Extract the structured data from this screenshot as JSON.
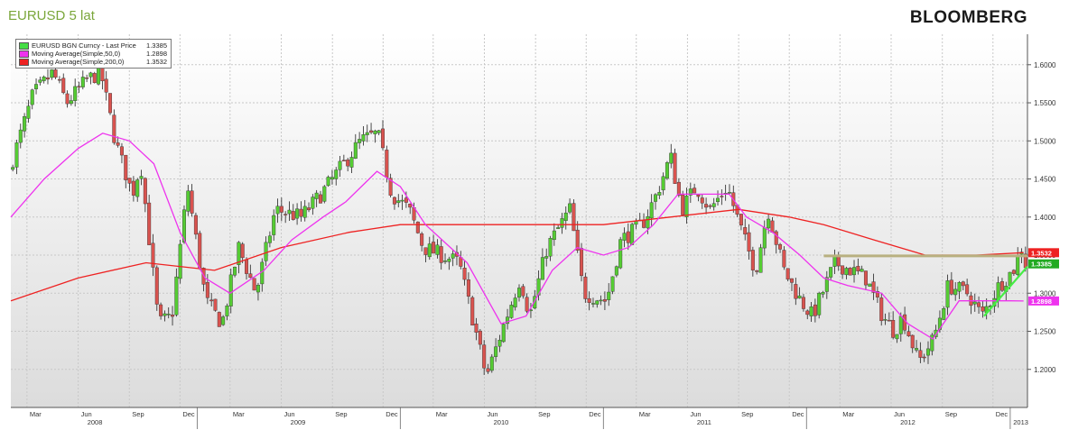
{
  "header": {
    "title": "EURUSD 5 lat",
    "brand": "BLOOMBERG"
  },
  "legend": {
    "items": [
      {
        "label": "EURUSD BGN Curncy - Last Price",
        "value": "1.3385",
        "color": "#44dd44"
      },
      {
        "label": "Moving Average(Simple,50,0)",
        "value": "1.2898",
        "color": "#ee33ee"
      },
      {
        "label": "Moving Average(Simple,200,0)",
        "value": "1.3532",
        "color": "#ee2222"
      }
    ]
  },
  "colors": {
    "up_candle": "#55cc33",
    "down_candle": "#d9534f",
    "ma50": "#ee33ee",
    "ma200": "#ee2222",
    "trend_up": "#44ee44",
    "resistance": "#b8b080",
    "grid": "#c8c8c8"
  },
  "chart_data": {
    "type": "candlestick",
    "title": "EURUSD 5 lat",
    "xlabel": "",
    "ylabel": "",
    "grid": true,
    "legend_position": "top-left",
    "y_axis_side": "right",
    "ylim": [
      1.15,
      1.64
    ],
    "y_ticks": [
      "1.6000",
      "1.5500",
      "1.5000",
      "1.4500",
      "1.4000",
      "1.3500",
      "1.3000",
      "1.2500",
      "1.2000"
    ],
    "x_month_labels": [
      {
        "label": "Mar",
        "date": "2008-03"
      },
      {
        "label": "Jun",
        "date": "2008-06"
      },
      {
        "label": "Sep",
        "date": "2008-09"
      },
      {
        "label": "Dec",
        "date": "2008-12"
      },
      {
        "label": "Mar",
        "date": "2009-03"
      },
      {
        "label": "Jun",
        "date": "2009-06"
      },
      {
        "label": "Sep",
        "date": "2009-09"
      },
      {
        "label": "Dec",
        "date": "2009-12"
      },
      {
        "label": "Mar",
        "date": "2010-03"
      },
      {
        "label": "Jun",
        "date": "2010-06"
      },
      {
        "label": "Sep",
        "date": "2010-09"
      },
      {
        "label": "Dec",
        "date": "2010-12"
      },
      {
        "label": "Mar",
        "date": "2011-03"
      },
      {
        "label": "Jun",
        "date": "2011-06"
      },
      {
        "label": "Sep",
        "date": "2011-09"
      },
      {
        "label": "Dec",
        "date": "2011-12"
      },
      {
        "label": "Mar",
        "date": "2012-03"
      },
      {
        "label": "Jun",
        "date": "2012-06"
      },
      {
        "label": "Sep",
        "date": "2012-09"
      },
      {
        "label": "Dec",
        "date": "2012-12"
      }
    ],
    "x_year_labels": [
      {
        "label": "2008",
        "date": "2008-07"
      },
      {
        "label": "2009",
        "date": "2009-07"
      },
      {
        "label": "2010",
        "date": "2010-07"
      },
      {
        "label": "2011",
        "date": "2011-07"
      },
      {
        "label": "2012",
        "date": "2012-07"
      },
      {
        "label": "2013",
        "date": "2013-01-20"
      }
    ],
    "x_range": [
      "2008-02-01",
      "2013-02-01"
    ],
    "price_keypoints": [
      [
        "2008-02-01",
        1.46
      ],
      [
        "2008-03-15",
        1.56
      ],
      [
        "2008-04-20",
        1.59
      ],
      [
        "2008-05-15",
        1.55
      ],
      [
        "2008-06-20",
        1.58
      ],
      [
        "2008-07-15",
        1.59
      ],
      [
        "2008-08-10",
        1.5
      ],
      [
        "2008-09-10",
        1.43
      ],
      [
        "2008-09-25",
        1.47
      ],
      [
        "2008-10-27",
        1.26
      ],
      [
        "2008-11-20",
        1.27
      ],
      [
        "2008-12-18",
        1.44
      ],
      [
        "2009-01-20",
        1.29
      ],
      [
        "2009-02-18",
        1.26
      ],
      [
        "2009-03-20",
        1.36
      ],
      [
        "2009-04-20",
        1.3
      ],
      [
        "2009-05-25",
        1.41
      ],
      [
        "2009-07-10",
        1.4
      ],
      [
        "2009-08-15",
        1.43
      ],
      [
        "2009-09-25",
        1.47
      ],
      [
        "2009-10-25",
        1.5
      ],
      [
        "2009-11-25",
        1.51
      ],
      [
        "2009-12-20",
        1.43
      ],
      [
        "2010-01-20",
        1.41
      ],
      [
        "2010-02-15",
        1.36
      ],
      [
        "2010-03-20",
        1.35
      ],
      [
        "2010-04-20",
        1.34
      ],
      [
        "2010-05-20",
        1.25
      ],
      [
        "2010-06-08",
        1.19
      ],
      [
        "2010-07-10",
        1.26
      ],
      [
        "2010-08-08",
        1.32
      ],
      [
        "2010-08-25",
        1.27
      ],
      [
        "2010-09-25",
        1.36
      ],
      [
        "2010-11-05",
        1.41
      ],
      [
        "2010-11-30",
        1.3
      ],
      [
        "2011-01-10",
        1.29
      ],
      [
        "2011-02-05",
        1.37
      ],
      [
        "2011-03-15",
        1.39
      ],
      [
        "2011-04-10",
        1.43
      ],
      [
        "2011-05-05",
        1.48
      ],
      [
        "2011-05-25",
        1.41
      ],
      [
        "2011-06-20",
        1.44
      ],
      [
        "2011-07-15",
        1.41
      ],
      [
        "2011-08-15",
        1.44
      ],
      [
        "2011-09-15",
        1.37
      ],
      [
        "2011-10-05",
        1.33
      ],
      [
        "2011-10-27",
        1.41
      ],
      [
        "2011-11-25",
        1.33
      ],
      [
        "2011-12-25",
        1.29
      ],
      [
        "2012-01-15",
        1.27
      ],
      [
        "2012-02-25",
        1.34
      ],
      [
        "2012-03-25",
        1.33
      ],
      [
        "2012-04-20",
        1.32
      ],
      [
        "2012-05-20",
        1.27
      ],
      [
        "2012-06-10",
        1.25
      ],
      [
        "2012-06-25",
        1.27
      ],
      [
        "2012-07-24",
        1.21
      ],
      [
        "2012-08-20",
        1.24
      ],
      [
        "2012-09-15",
        1.31
      ],
      [
        "2012-10-20",
        1.3
      ],
      [
        "2012-11-15",
        1.27
      ],
      [
        "2012-12-15",
        1.31
      ],
      [
        "2013-01-10",
        1.33
      ],
      [
        "2013-01-25",
        1.36
      ],
      [
        "2013-02-01",
        1.3385
      ]
    ],
    "series": [
      {
        "name": "EURUSD BGN Curncy - Last Price",
        "last_value": 1.3385
      },
      {
        "name": "Moving Average(Simple,50,0)",
        "last_value": 1.2898,
        "points": [
          [
            "2008-02-01",
            1.4
          ],
          [
            "2008-04-01",
            1.45
          ],
          [
            "2008-06-01",
            1.49
          ],
          [
            "2008-07-15",
            1.51
          ],
          [
            "2008-09-01",
            1.5
          ],
          [
            "2008-10-15",
            1.47
          ],
          [
            "2008-12-01",
            1.38
          ],
          [
            "2009-01-15",
            1.32
          ],
          [
            "2009-03-01",
            1.3
          ],
          [
            "2009-05-01",
            1.33
          ],
          [
            "2009-06-20",
            1.37
          ],
          [
            "2009-08-15",
            1.4
          ],
          [
            "2009-09-25",
            1.42
          ],
          [
            "2009-11-20",
            1.46
          ],
          [
            "2010-01-01",
            1.44
          ],
          [
            "2010-02-15",
            1.39
          ],
          [
            "2010-04-01",
            1.36
          ],
          [
            "2010-05-01",
            1.34
          ],
          [
            "2010-07-01",
            1.26
          ],
          [
            "2010-08-15",
            1.27
          ],
          [
            "2010-10-01",
            1.33
          ],
          [
            "2010-11-15",
            1.36
          ],
          [
            "2011-01-01",
            1.35
          ],
          [
            "2011-02-15",
            1.36
          ],
          [
            "2011-04-01",
            1.39
          ],
          [
            "2011-05-15",
            1.43
          ],
          [
            "2011-07-01",
            1.43
          ],
          [
            "2011-08-15",
            1.43
          ],
          [
            "2011-09-15",
            1.4
          ],
          [
            "2011-11-01",
            1.38
          ],
          [
            "2011-12-20",
            1.35
          ],
          [
            "2012-02-01",
            1.32
          ],
          [
            "2012-03-15",
            1.31
          ],
          [
            "2012-05-15",
            1.3
          ],
          [
            "2012-07-01",
            1.26
          ],
          [
            "2012-08-15",
            1.24
          ],
          [
            "2012-10-01",
            1.29
          ],
          [
            "2012-11-15",
            1.29
          ],
          [
            "2013-01-01",
            1.29
          ],
          [
            "2013-01-25",
            1.2898
          ]
        ]
      },
      {
        "name": "Moving Average(Simple,200,0)",
        "last_value": 1.3532,
        "points": [
          [
            "2008-02-01",
            1.29
          ],
          [
            "2008-06-01",
            1.32
          ],
          [
            "2008-10-01",
            1.34
          ],
          [
            "2009-02-01",
            1.33
          ],
          [
            "2009-06-01",
            1.36
          ],
          [
            "2009-10-01",
            1.38
          ],
          [
            "2010-01-01",
            1.39
          ],
          [
            "2010-04-01",
            1.39
          ],
          [
            "2010-08-01",
            1.39
          ],
          [
            "2011-01-01",
            1.39
          ],
          [
            "2011-05-01",
            1.4
          ],
          [
            "2011-09-01",
            1.41
          ],
          [
            "2011-12-01",
            1.4
          ],
          [
            "2012-02-01",
            1.39
          ],
          [
            "2012-05-01",
            1.37
          ],
          [
            "2012-08-01",
            1.35
          ],
          [
            "2012-11-01",
            1.35
          ],
          [
            "2013-01-25",
            1.3532
          ]
        ]
      }
    ],
    "annotations": [
      {
        "type": "resistance_line",
        "from": [
          "2012-02-01",
          1.349
        ],
        "to": [
          "2013-02-01",
          1.349
        ]
      },
      {
        "type": "trend_line",
        "from": [
          "2012-11-15",
          1.27
        ],
        "to": [
          "2013-02-01",
          1.335
        ]
      }
    ],
    "price_tags": [
      {
        "text": "1.3532",
        "value": 1.3532,
        "color": "#ee2222"
      },
      {
        "text": "1.3385",
        "value": 1.3385,
        "color": "#22aa22"
      },
      {
        "text": "1.2898",
        "value": 1.2898,
        "color": "#ee33ee"
      }
    ]
  }
}
